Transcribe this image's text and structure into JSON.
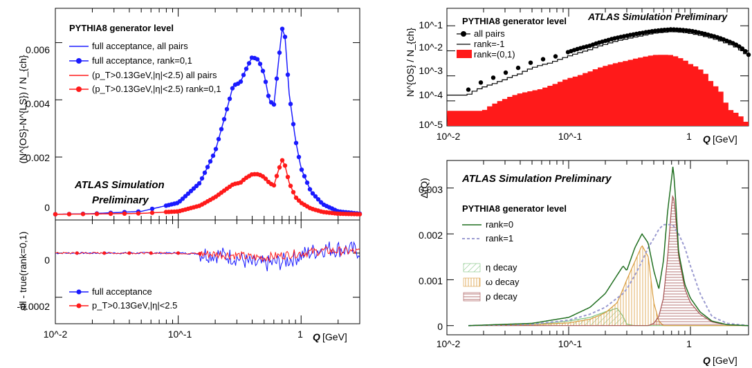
{
  "colors": {
    "blue": "#1a1aff",
    "red": "#ff1a1a",
    "green": "#1f6e1f",
    "dashed": "#9a9ad0",
    "eta": "#7ec27e",
    "omega": "#d89a3a",
    "rho": "#a35050"
  },
  "panel_a": {
    "ylabel": "(N^{OS}-N^{LS}) / N_{ch}",
    "yticks": [
      "0.006",
      "0.004",
      "0.002",
      "0"
    ],
    "generator": "PYTHIA8 generator level",
    "legend": [
      "full acceptance, all pairs",
      "full acceptance, rank=0,1",
      "(p_T>0.13GeV,|η|<2.5) all pairs",
      "(p_T>0.13GeV,|η|<2.5) rank=0,1"
    ],
    "atlas1": "ATLAS Simulation",
    "atlas2": "Preliminary"
  },
  "panel_b": {
    "ylabel": "all - true(rank=0,1)",
    "yticks": [
      "0",
      "-0.0002"
    ],
    "legend": [
      "full acceptance",
      "p_T>0.13GeV,|η|<2.5"
    ],
    "xticks": [
      "10^-2",
      "10^-1",
      "1"
    ],
    "xlabel_q": "Q",
    "xlabel_unit": "[GeV]"
  },
  "panel_c": {
    "ylabel": "N^{OS} / N_{ch}",
    "yticks": [
      "10^-1",
      "10^-2",
      "10^-3",
      "10^-4",
      "10^-5"
    ],
    "xticks": [
      "10^-2",
      "10^-1",
      "1"
    ],
    "xlabel_q": "Q",
    "xlabel_unit": "[GeV]",
    "generator": "PYTHIA8 generator level",
    "atlas": "ATLAS Simulation Preliminary",
    "legend": [
      "all pairs",
      "rank=-1",
      "rank=(0,1)"
    ]
  },
  "panel_d": {
    "ylabel": "Δ(Q)",
    "yticks": [
      "0.003",
      "0.002",
      "0.001",
      "0"
    ],
    "xticks": [
      "10^-2",
      "10^-1",
      "1"
    ],
    "xlabel_q": "Q",
    "xlabel_unit": "[GeV]",
    "atlas": "ATLAS Simulation Preliminary",
    "generator": "PYTHIA8 generator level",
    "legend": [
      "rank=0",
      "rank=1",
      "η decay",
      "ω decay",
      "ρ decay"
    ]
  },
  "chart_data": [
    {
      "type": "line",
      "x": [
        0.01,
        0.02,
        0.05,
        0.1,
        0.15,
        0.2,
        0.25,
        0.28,
        0.32,
        0.35,
        0.4,
        0.45,
        0.5,
        0.55,
        0.6,
        0.65,
        0.7,
        0.74,
        0.8,
        0.9,
        1.0,
        1.2,
        1.5,
        2.0,
        3.0
      ],
      "xscale": "log",
      "xlim": [
        0.01,
        3.0
      ],
      "ylim": [
        -0.0002,
        0.0072
      ],
      "series": [
        {
          "name": "full acceptance, rank=0,1",
          "values": [
            0.0,
            2e-05,
            0.0001,
            0.0004,
            0.0011,
            0.0022,
            0.0037,
            0.0045,
            0.0046,
            0.005,
            0.0055,
            0.0054,
            0.0049,
            0.004,
            0.0038,
            0.0052,
            0.0065,
            0.0062,
            0.0042,
            0.0026,
            0.0016,
            0.0008,
            0.00035,
            0.0001,
            2e-05
          ]
        },
        {
          "name": "(p_T>0.13GeV,|η|<2.5) rank=0,1",
          "values": [
            0.0,
            1e-05,
            3e-05,
            0.0001,
            0.0003,
            0.0006,
            0.0009,
            0.00105,
            0.0011,
            0.00125,
            0.0014,
            0.0014,
            0.0013,
            0.0011,
            0.001,
            0.0015,
            0.0019,
            0.0017,
            0.0011,
            0.0006,
            0.0004,
            0.0002,
            8e-05,
            2e-05,
            0.0
          ]
        }
      ]
    },
    {
      "type": "line",
      "x": [
        0.01,
        0.05,
        0.1,
        0.2,
        0.3,
        0.4,
        0.5,
        0.7,
        1.0,
        1.5,
        2.0,
        3.0
      ],
      "xscale": "log",
      "ylim": [
        -0.00032,
        0.00015
      ],
      "series": [
        {
          "name": "full acceptance",
          "values": [
            0.0,
            0.0,
            0.0,
            -5e-06,
            -2e-05,
            -5e-05,
            -5e-05,
            -4e-05,
            -1e-05,
            2e-05,
            2e-05,
            1e-05
          ]
        },
        {
          "name": "p_T>0.13GeV,|η|<2.5",
          "values": [
            0.0,
            0.0,
            0.0,
            -5e-06,
            -1e-05,
            -2e-05,
            -2e-05,
            -1e-05,
            0.0,
            1e-05,
            1e-05,
            5e-06
          ]
        }
      ]
    },
    {
      "type": "line",
      "x": [
        0.015,
        0.02,
        0.025,
        0.03,
        0.04,
        0.05,
        0.06,
        0.07,
        0.08,
        0.1,
        0.12,
        0.15,
        0.2,
        0.3,
        0.4,
        0.5,
        0.6,
        0.7,
        0.8,
        1.0,
        1.5,
        2.0,
        3.0
      ],
      "xscale": "log",
      "yscale": "log",
      "xlim": [
        0.01,
        3.0
      ],
      "ylim": [
        1e-05,
        0.5
      ],
      "series": [
        {
          "name": "all pairs",
          "values": [
            0.00028,
            0.0006,
            0.0009,
            0.0013,
            0.0022,
            0.0035,
            0.0045,
            0.0052,
            0.0062,
            0.009,
            0.012,
            0.016,
            0.025,
            0.04,
            0.052,
            0.062,
            0.068,
            0.072,
            0.07,
            0.063,
            0.04,
            0.025,
            0.007
          ]
        },
        {
          "name": "rank=-1",
          "values": [
            0.00017,
            0.00035,
            0.0005,
            0.0007,
            0.0012,
            0.002,
            0.0027,
            0.0032,
            0.004,
            0.006,
            0.008,
            0.011,
            0.018,
            0.03,
            0.04,
            0.05,
            0.055,
            0.058,
            0.057,
            0.05,
            0.032,
            0.02,
            0.006
          ]
        },
        {
          "name": "rank=(0,1)",
          "values": [
            4e-05,
            4e-05,
            8e-05,
            0.00012,
            0.0002,
            0.00025,
            0.0003,
            0.0004,
            0.0005,
            0.0008,
            0.001,
            0.0015,
            0.0025,
            0.004,
            0.0055,
            0.0068,
            0.007,
            0.0068,
            0.0055,
            0.003,
            0.0005,
            5e-05,
            1e-05
          ]
        }
      ]
    },
    {
      "type": "line",
      "x": [
        0.015,
        0.05,
        0.1,
        0.15,
        0.2,
        0.25,
        0.28,
        0.3,
        0.35,
        0.4,
        0.45,
        0.5,
        0.55,
        0.6,
        0.65,
        0.7,
        0.72,
        0.75,
        0.8,
        0.9,
        1.0,
        1.2,
        1.5,
        2.0,
        3.0
      ],
      "xscale": "log",
      "xlim": [
        0.01,
        3.0
      ],
      "ylim": [
        -0.0002,
        0.0036
      ],
      "series": [
        {
          "name": "rank=0",
          "values": [
            0.0,
            5e-05,
            0.00018,
            0.0004,
            0.0007,
            0.0011,
            0.0013,
            0.0012,
            0.0017,
            0.002,
            0.0018,
            0.0012,
            0.0008,
            0.0014,
            0.0025,
            0.0032,
            0.0035,
            0.0029,
            0.0016,
            0.0009,
            0.0006,
            0.0003,
            0.0001,
            2e-05,
            0.0
          ]
        },
        {
          "name": "rank=1",
          "values": [
            0.0,
            3e-05,
            0.00012,
            0.00025,
            0.0004,
            0.0006,
            0.0007,
            0.0008,
            0.0011,
            0.0014,
            0.0017,
            0.0019,
            0.0021,
            0.0022,
            0.0022,
            0.0022,
            0.0022,
            0.0021,
            0.002,
            0.0017,
            0.0013,
            0.0007,
            0.0002,
            5e-05,
            0.0
          ]
        },
        {
          "name": "η decay",
          "values": [
            0.0,
            2e-05,
            0.0001,
            0.00018,
            0.0003,
            0.00038,
            0.0002,
            3e-05,
            0.0,
            0.0,
            0.0,
            0.0,
            0.0,
            0.0,
            0.0,
            0.0,
            0.0,
            0.0,
            0.0,
            0.0,
            0.0,
            0.0,
            0.0,
            0.0,
            0.0
          ]
        },
        {
          "name": "ω decay",
          "values": [
            0.0,
            2e-05,
            6e-05,
            0.00014,
            0.00028,
            0.0005,
            0.0008,
            0.001,
            0.0014,
            0.00175,
            0.0015,
            0.0005,
            0.0001,
            0.0,
            0.0,
            0.0,
            0.0,
            0.0,
            0.0,
            0.0,
            0.0,
            0.0,
            0.0,
            0.0,
            0.0
          ]
        },
        {
          "name": "ρ decay",
          "values": [
            0.0,
            0.0,
            0.0,
            0.0,
            0.0,
            0.0,
            0.0,
            0.0,
            0.0,
            0.0,
            0.0,
            5e-05,
            0.0002,
            0.0006,
            0.0015,
            0.0026,
            0.0029,
            0.0025,
            0.0015,
            0.0008,
            0.0005,
            0.00025,
            8e-05,
            2e-05,
            0.0
          ]
        }
      ]
    }
  ]
}
